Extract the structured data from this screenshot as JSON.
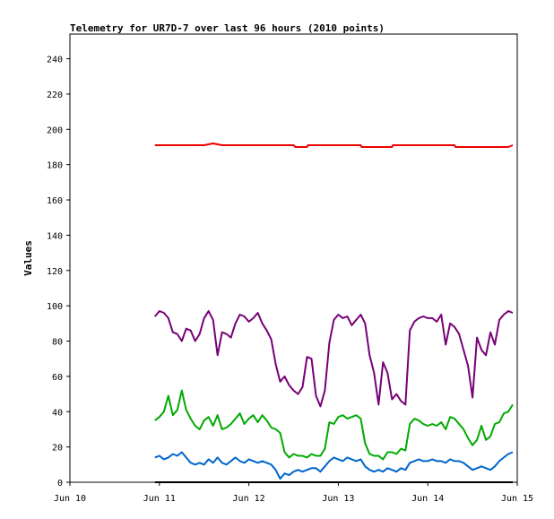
{
  "chart_data": {
    "type": "line",
    "title": "Telemetry for UR7D-7 over last 96 hours (2010 points)",
    "xlabel": "",
    "ylabel": "Values",
    "xlim": [
      "2010-06-10",
      "2010-06-15"
    ],
    "ylim": [
      0,
      254
    ],
    "x_ticks": [
      "Jun 10",
      "Jun 11",
      "Jun 12",
      "Jun 13",
      "Jun 14",
      "Jun 15"
    ],
    "y_ticks": [
      0,
      20,
      40,
      60,
      80,
      100,
      120,
      140,
      160,
      180,
      200,
      220,
      240
    ],
    "grid": false,
    "legend": "none",
    "x_unit": "days from Jun 10",
    "series": [
      {
        "color": "#ee0000",
        "points": [
          [
            0.95,
            191
          ],
          [
            1.5,
            191
          ],
          [
            1.6,
            192
          ],
          [
            1.7,
            191
          ],
          [
            2.5,
            191
          ],
          [
            2.52,
            190
          ],
          [
            2.65,
            190
          ],
          [
            2.66,
            191
          ],
          [
            3.25,
            191
          ],
          [
            3.26,
            190
          ],
          [
            3.6,
            190
          ],
          [
            3.61,
            191
          ],
          [
            4.3,
            191
          ],
          [
            4.31,
            190
          ],
          [
            4.9,
            190
          ],
          [
            4.95,
            191
          ]
        ]
      },
      {
        "color": "#770077",
        "points": [
          [
            0.95,
            94
          ],
          [
            1.0,
            97
          ],
          [
            1.05,
            96
          ],
          [
            1.1,
            93
          ],
          [
            1.15,
            85
          ],
          [
            1.2,
            84
          ],
          [
            1.25,
            80
          ],
          [
            1.3,
            87
          ],
          [
            1.35,
            86
          ],
          [
            1.4,
            80
          ],
          [
            1.45,
            84
          ],
          [
            1.5,
            93
          ],
          [
            1.55,
            97
          ],
          [
            1.6,
            92
          ],
          [
            1.65,
            72
          ],
          [
            1.7,
            85
          ],
          [
            1.75,
            84
          ],
          [
            1.8,
            82
          ],
          [
            1.85,
            90
          ],
          [
            1.9,
            95
          ],
          [
            1.95,
            94
          ],
          [
            2.0,
            91
          ],
          [
            2.05,
            93
          ],
          [
            2.1,
            96
          ],
          [
            2.15,
            90
          ],
          [
            2.2,
            86
          ],
          [
            2.25,
            81
          ],
          [
            2.3,
            67
          ],
          [
            2.35,
            57
          ],
          [
            2.4,
            60
          ],
          [
            2.45,
            55
          ],
          [
            2.5,
            52
          ],
          [
            2.55,
            50
          ],
          [
            2.6,
            54
          ],
          [
            2.65,
            71
          ],
          [
            2.7,
            70
          ],
          [
            2.75,
            49
          ],
          [
            2.8,
            43
          ],
          [
            2.85,
            52
          ],
          [
            2.9,
            79
          ],
          [
            2.95,
            92
          ],
          [
            3.0,
            95
          ],
          [
            3.05,
            93
          ],
          [
            3.1,
            94
          ],
          [
            3.15,
            89
          ],
          [
            3.2,
            92
          ],
          [
            3.25,
            95
          ],
          [
            3.3,
            90
          ],
          [
            3.35,
            72
          ],
          [
            3.4,
            62
          ],
          [
            3.45,
            44
          ],
          [
            3.5,
            68
          ],
          [
            3.55,
            62
          ],
          [
            3.6,
            47
          ],
          [
            3.65,
            50
          ],
          [
            3.7,
            46
          ],
          [
            3.75,
            44
          ],
          [
            3.8,
            86
          ],
          [
            3.85,
            91
          ],
          [
            3.9,
            93
          ],
          [
            3.95,
            94
          ],
          [
            4.0,
            93
          ],
          [
            4.05,
            93
          ],
          [
            4.1,
            91
          ],
          [
            4.15,
            95
          ],
          [
            4.2,
            78
          ],
          [
            4.25,
            90
          ],
          [
            4.3,
            88
          ],
          [
            4.35,
            84
          ],
          [
            4.4,
            75
          ],
          [
            4.45,
            66
          ],
          [
            4.5,
            48
          ],
          [
            4.55,
            82
          ],
          [
            4.6,
            75
          ],
          [
            4.65,
            72
          ],
          [
            4.7,
            85
          ],
          [
            4.75,
            78
          ],
          [
            4.8,
            92
          ],
          [
            4.85,
            95
          ],
          [
            4.9,
            97
          ],
          [
            4.95,
            96
          ]
        ]
      },
      {
        "color": "#00aa00",
        "points": [
          [
            0.95,
            35
          ],
          [
            1.0,
            37
          ],
          [
            1.05,
            40
          ],
          [
            1.1,
            49
          ],
          [
            1.15,
            38
          ],
          [
            1.2,
            41
          ],
          [
            1.25,
            52
          ],
          [
            1.3,
            41
          ],
          [
            1.35,
            36
          ],
          [
            1.4,
            32
          ],
          [
            1.45,
            30
          ],
          [
            1.5,
            35
          ],
          [
            1.55,
            37
          ],
          [
            1.6,
            32
          ],
          [
            1.65,
            38
          ],
          [
            1.7,
            30
          ],
          [
            1.75,
            31
          ],
          [
            1.8,
            33
          ],
          [
            1.85,
            36
          ],
          [
            1.9,
            39
          ],
          [
            1.95,
            33
          ],
          [
            2.0,
            36
          ],
          [
            2.05,
            38
          ],
          [
            2.1,
            34
          ],
          [
            2.15,
            38
          ],
          [
            2.2,
            35
          ],
          [
            2.25,
            31
          ],
          [
            2.3,
            30
          ],
          [
            2.35,
            28
          ],
          [
            2.4,
            17
          ],
          [
            2.45,
            14
          ],
          [
            2.5,
            16
          ],
          [
            2.55,
            15
          ],
          [
            2.6,
            15
          ],
          [
            2.65,
            14
          ],
          [
            2.7,
            16
          ],
          [
            2.75,
            15
          ],
          [
            2.8,
            15
          ],
          [
            2.85,
            19
          ],
          [
            2.9,
            34
          ],
          [
            2.95,
            33
          ],
          [
            3.0,
            37
          ],
          [
            3.05,
            38
          ],
          [
            3.1,
            36
          ],
          [
            3.15,
            37
          ],
          [
            3.2,
            38
          ],
          [
            3.25,
            36
          ],
          [
            3.3,
            22
          ],
          [
            3.35,
            16
          ],
          [
            3.4,
            15
          ],
          [
            3.45,
            15
          ],
          [
            3.5,
            13
          ],
          [
            3.55,
            17
          ],
          [
            3.6,
            17
          ],
          [
            3.65,
            16
          ],
          [
            3.7,
            19
          ],
          [
            3.75,
            18
          ],
          [
            3.8,
            33
          ],
          [
            3.85,
            36
          ],
          [
            3.9,
            35
          ],
          [
            3.95,
            33
          ],
          [
            4.0,
            32
          ],
          [
            4.05,
            33
          ],
          [
            4.1,
            32
          ],
          [
            4.15,
            34
          ],
          [
            4.2,
            30
          ],
          [
            4.25,
            37
          ],
          [
            4.3,
            36
          ],
          [
            4.35,
            33
          ],
          [
            4.4,
            30
          ],
          [
            4.45,
            25
          ],
          [
            4.5,
            21
          ],
          [
            4.55,
            24
          ],
          [
            4.6,
            32
          ],
          [
            4.65,
            24
          ],
          [
            4.7,
            26
          ],
          [
            4.75,
            33
          ],
          [
            4.8,
            34
          ],
          [
            4.85,
            39
          ],
          [
            4.9,
            40
          ],
          [
            4.95,
            44
          ]
        ]
      },
      {
        "color": "#0066cc",
        "points": [
          [
            0.95,
            14
          ],
          [
            1.0,
            15
          ],
          [
            1.05,
            13
          ],
          [
            1.1,
            14
          ],
          [
            1.15,
            16
          ],
          [
            1.2,
            15
          ],
          [
            1.25,
            17
          ],
          [
            1.3,
            14
          ],
          [
            1.35,
            11
          ],
          [
            1.4,
            10
          ],
          [
            1.45,
            11
          ],
          [
            1.5,
            10
          ],
          [
            1.55,
            13
          ],
          [
            1.6,
            11
          ],
          [
            1.65,
            14
          ],
          [
            1.7,
            11
          ],
          [
            1.75,
            10
          ],
          [
            1.8,
            12
          ],
          [
            1.85,
            14
          ],
          [
            1.9,
            12
          ],
          [
            1.95,
            11
          ],
          [
            2.0,
            13
          ],
          [
            2.05,
            12
          ],
          [
            2.1,
            11
          ],
          [
            2.15,
            12
          ],
          [
            2.2,
            11
          ],
          [
            2.25,
            10
          ],
          [
            2.3,
            7
          ],
          [
            2.35,
            2
          ],
          [
            2.4,
            5
          ],
          [
            2.45,
            4
          ],
          [
            2.5,
            6
          ],
          [
            2.55,
            7
          ],
          [
            2.6,
            6
          ],
          [
            2.65,
            7
          ],
          [
            2.7,
            8
          ],
          [
            2.75,
            8
          ],
          [
            2.8,
            6
          ],
          [
            2.85,
            9
          ],
          [
            2.9,
            12
          ],
          [
            2.95,
            14
          ],
          [
            3.0,
            13
          ],
          [
            3.05,
            12
          ],
          [
            3.1,
            14
          ],
          [
            3.15,
            13
          ],
          [
            3.2,
            12
          ],
          [
            3.25,
            13
          ],
          [
            3.3,
            9
          ],
          [
            3.35,
            7
          ],
          [
            3.4,
            6
          ],
          [
            3.45,
            7
          ],
          [
            3.5,
            6
          ],
          [
            3.55,
            8
          ],
          [
            3.6,
            7
          ],
          [
            3.65,
            6
          ],
          [
            3.7,
            8
          ],
          [
            3.75,
            7
          ],
          [
            3.8,
            11
          ],
          [
            3.85,
            12
          ],
          [
            3.9,
            13
          ],
          [
            3.95,
            12
          ],
          [
            4.0,
            12
          ],
          [
            4.05,
            13
          ],
          [
            4.1,
            12
          ],
          [
            4.15,
            12
          ],
          [
            4.2,
            11
          ],
          [
            4.25,
            13
          ],
          [
            4.3,
            12
          ],
          [
            4.35,
            12
          ],
          [
            4.4,
            11
          ],
          [
            4.45,
            9
          ],
          [
            4.5,
            7
          ],
          [
            4.55,
            8
          ],
          [
            4.6,
            9
          ],
          [
            4.65,
            8
          ],
          [
            4.7,
            7
          ],
          [
            4.75,
            9
          ],
          [
            4.8,
            12
          ],
          [
            4.85,
            14
          ],
          [
            4.9,
            16
          ],
          [
            4.95,
            17
          ]
        ]
      },
      {
        "color": "#000000",
        "points": [
          [
            0.95,
            0
          ],
          [
            4.95,
            0
          ]
        ]
      }
    ]
  }
}
